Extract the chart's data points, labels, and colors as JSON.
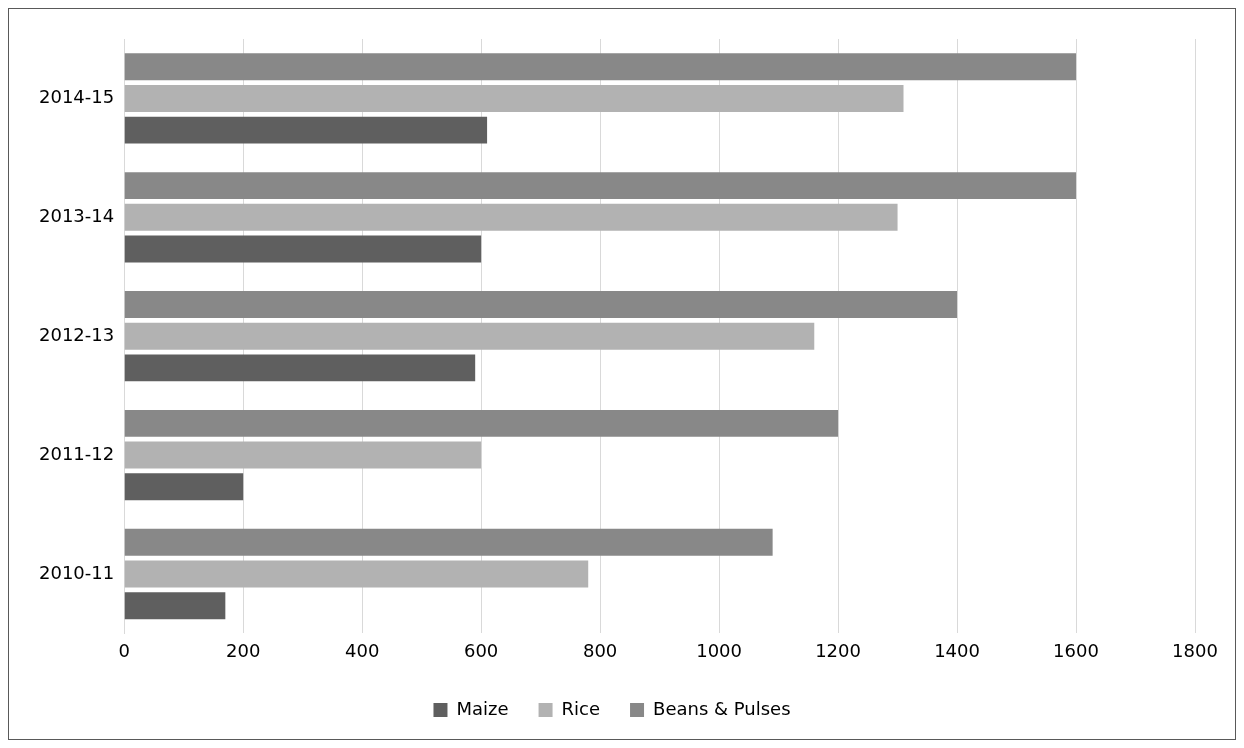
{
  "chart_data": {
    "type": "bar",
    "orientation": "horizontal",
    "categories": [
      "2014-15",
      "2013-14",
      "2012-13",
      "2011-12",
      "2010-11"
    ],
    "series": [
      {
        "name": "Maize",
        "color": "#5f5f5f",
        "values": [
          610,
          600,
          590,
          200,
          170
        ]
      },
      {
        "name": "Rice",
        "color": "#b2b2b2",
        "values": [
          1310,
          1300,
          1160,
          600,
          780
        ]
      },
      {
        "name": "Beans & Pulses",
        "color": "#888888",
        "values": [
          1600,
          1600,
          1400,
          1200,
          1090
        ]
      }
    ],
    "xlim": [
      0,
      1800
    ],
    "xticks": [
      0,
      200,
      400,
      600,
      800,
      1000,
      1200,
      1400,
      1600,
      1800
    ],
    "grid": "x",
    "legend": "bottom"
  }
}
